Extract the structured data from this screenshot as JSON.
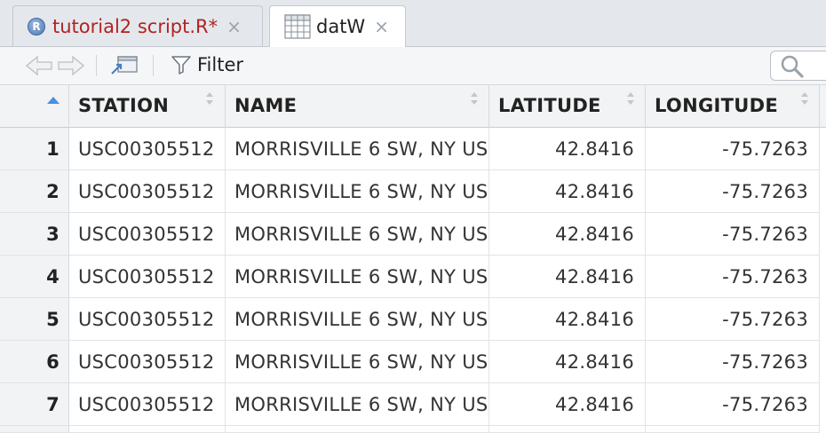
{
  "tabs": [
    {
      "label": "tutorial2 script.R*",
      "close": "×",
      "icon": "r-script-icon",
      "active": false,
      "label_color": "#b22222"
    },
    {
      "label": "datW",
      "close": "×",
      "icon": "data-grid-icon",
      "active": true,
      "label_color": "#222222"
    }
  ],
  "toolbar": {
    "back_icon": "back-arrow-icon",
    "forward_icon": "forward-arrow-icon",
    "popout_icon": "popout-window-icon",
    "filter_icon": "funnel-icon",
    "filter_label": "Filter",
    "search_icon": "magnifier-icon"
  },
  "table": {
    "sorted_column": "row-number",
    "columns": [
      "STATION",
      "NAME",
      "LATITUDE",
      "LONGITUDE"
    ],
    "rows": [
      {
        "n": "1",
        "station": "USC00305512",
        "name": "MORRISVILLE 6 SW, NY US",
        "latitude": "42.8416",
        "longitude": "-75.7263"
      },
      {
        "n": "2",
        "station": "USC00305512",
        "name": "MORRISVILLE 6 SW, NY US",
        "latitude": "42.8416",
        "longitude": "-75.7263"
      },
      {
        "n": "3",
        "station": "USC00305512",
        "name": "MORRISVILLE 6 SW, NY US",
        "latitude": "42.8416",
        "longitude": "-75.7263"
      },
      {
        "n": "4",
        "station": "USC00305512",
        "name": "MORRISVILLE 6 SW, NY US",
        "latitude": "42.8416",
        "longitude": "-75.7263"
      },
      {
        "n": "5",
        "station": "USC00305512",
        "name": "MORRISVILLE 6 SW, NY US",
        "latitude": "42.8416",
        "longitude": "-75.7263"
      },
      {
        "n": "6",
        "station": "USC00305512",
        "name": "MORRISVILLE 6 SW, NY US",
        "latitude": "42.8416",
        "longitude": "-75.7263"
      },
      {
        "n": "7",
        "station": "USC00305512",
        "name": "MORRISVILLE 6 SW, NY US",
        "latitude": "42.8416",
        "longitude": "-75.7263"
      }
    ]
  },
  "colors": {
    "accent": "#4a90e2",
    "modified_tab_text": "#b22222"
  }
}
